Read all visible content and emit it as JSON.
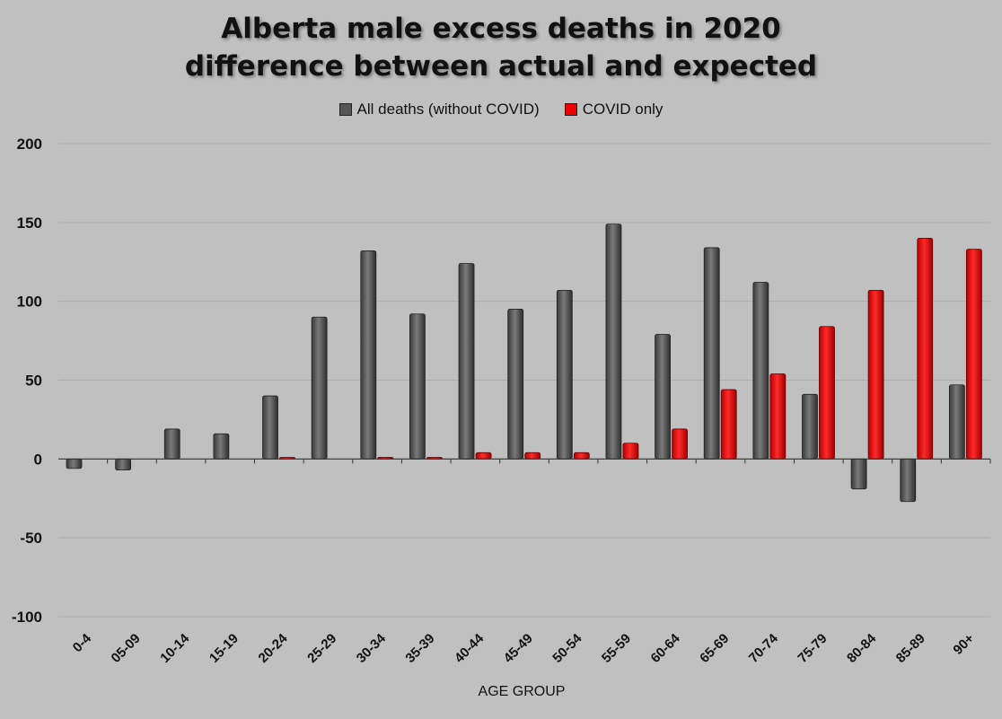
{
  "chart_data": {
    "type": "bar",
    "title": "Alberta male excess deaths in 2020",
    "subtitle": "difference between actual and expected",
    "xlabel": "AGE GROUP",
    "ylabel": "",
    "ylim": [
      -100,
      200
    ],
    "yticks": [
      200,
      150,
      100,
      50,
      0,
      -50,
      -100
    ],
    "grid": true,
    "legend_position": "top-center",
    "categories": [
      "0-4",
      "05-09",
      "10-14",
      "15-19",
      "20-24",
      "25-29",
      "30-34",
      "35-39",
      "40-44",
      "45-49",
      "50-54",
      "55-59",
      "60-64",
      "65-69",
      "70-74",
      "75-79",
      "80-84",
      "85-89",
      "90+"
    ],
    "series": [
      {
        "name": "All deaths (without COVID)",
        "color": "#555555",
        "values": [
          -6,
          -7,
          19,
          16,
          40,
          90,
          132,
          92,
          124,
          95,
          107,
          149,
          79,
          134,
          112,
          41,
          -19,
          -27,
          47
        ]
      },
      {
        "name": "COVID only",
        "color": "#ee0000",
        "values": [
          0,
          0,
          0,
          0,
          1,
          0,
          1,
          1,
          4,
          4,
          4,
          10,
          19,
          44,
          54,
          84,
          107,
          140,
          133
        ]
      }
    ]
  }
}
